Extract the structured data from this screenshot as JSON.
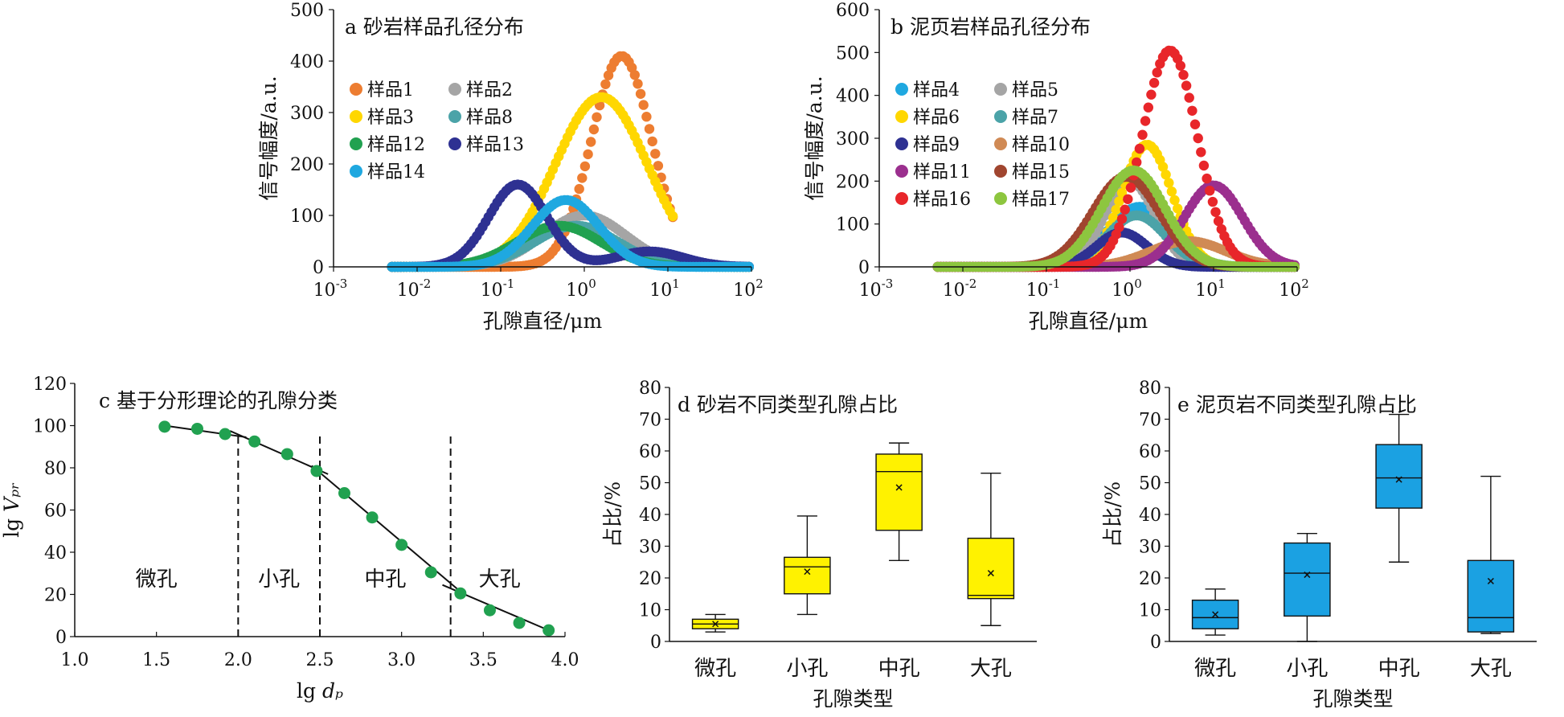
{
  "colors": {
    "样品1": "#ED7D31",
    "样品2": "#A5A5A5",
    "样品3": "#FFD700",
    "样品8": "#4BA3A8",
    "样品12": "#21A150",
    "样品13": "#2E3192",
    "样品14": "#1FA8E0",
    "样品4": "#1FA8E0",
    "样品5": "#A5A5A5",
    "样品6": "#FFD700",
    "样品7": "#4BA3A8",
    "样品9": "#2E3192",
    "样品10": "#D08A55",
    "样品11": "#9B2F8E",
    "样品15": "#A0452F",
    "样品16": "#E8262A",
    "样品17": "#8DC63F",
    "fractal_points": "#21A150",
    "sandstone_box": "#FFF200",
    "shale_box": "#1BA1E2"
  },
  "chart_data": [
    {
      "id": "a",
      "type": "scatter",
      "title": "a 砂岩样品孔径分布",
      "xlabel": "孔隙直径/μm",
      "ylabel": "信号幅度/a.u.",
      "xscale": "log",
      "xlim": [
        0.001,
        100
      ],
      "ylim": [
        0,
        500
      ],
      "xticks": [
        -3,
        -2,
        -1,
        0,
        1,
        2
      ],
      "yticks": [
        0,
        100,
        200,
        300,
        400,
        500
      ],
      "legend_position": "top-left",
      "series": [
        {
          "name": "样品1",
          "peak_x": 2.8,
          "peak_y": 410,
          "sigma_log": 0.36,
          "x_range": [
            0.005,
            12
          ]
        },
        {
          "name": "样品2",
          "peak_x": 1.0,
          "peak_y": 100,
          "sigma_log": 0.5,
          "x_range": [
            0.005,
            100
          ]
        },
        {
          "name": "样品3",
          "peak_x": 1.6,
          "peak_y": 330,
          "sigma_log": 0.55,
          "x_range": [
            0.005,
            12
          ]
        },
        {
          "name": "样品8",
          "peak_x": 0.8,
          "peak_y": 80,
          "sigma_log": 0.5,
          "x_range": [
            0.005,
            100
          ]
        },
        {
          "name": "样品12",
          "peak_x": 0.5,
          "peak_y": 80,
          "sigma_log": 0.5,
          "x_range": [
            0.005,
            100
          ]
        },
        {
          "name": "样品13",
          "peak_x": 0.16,
          "peak_y": 160,
          "sigma_log": 0.35,
          "x_range": [
            0.005,
            100
          ],
          "second_peak_x": 6,
          "second_peak_y": 30,
          "second_sigma_log": 0.4
        },
        {
          "name": "样品14",
          "peak_x": 0.6,
          "peak_y": 130,
          "sigma_log": 0.4,
          "x_range": [
            0.005,
            100
          ]
        }
      ]
    },
    {
      "id": "b",
      "type": "scatter",
      "title": "b 泥页岩样品孔径分布",
      "xlabel": "孔隙直径/μm",
      "ylabel": "信号幅度/a.u.",
      "xscale": "log",
      "xlim": [
        0.001,
        100
      ],
      "ylim": [
        0,
        600
      ],
      "xticks": [
        -3,
        -2,
        -1,
        0,
        1,
        2
      ],
      "yticks": [
        0,
        100,
        200,
        300,
        400,
        500,
        600
      ],
      "legend_position": "top-left",
      "series": [
        {
          "name": "样品4",
          "peak_x": 1.3,
          "peak_y": 140,
          "sigma_log": 0.38,
          "x_range": [
            0.005,
            100
          ]
        },
        {
          "name": "样品5",
          "peak_x": 1.0,
          "peak_y": 200,
          "sigma_log": 0.3,
          "x_range": [
            0.005,
            100
          ]
        },
        {
          "name": "样品6",
          "peak_x": 1.6,
          "peak_y": 285,
          "sigma_log": 0.3,
          "x_range": [
            0.005,
            100
          ]
        },
        {
          "name": "样品7",
          "peak_x": 1.2,
          "peak_y": 120,
          "sigma_log": 0.35,
          "x_range": [
            0.005,
            100
          ]
        },
        {
          "name": "样品9",
          "peak_x": 0.8,
          "peak_y": 80,
          "sigma_log": 0.3,
          "x_range": [
            0.005,
            100
          ]
        },
        {
          "name": "样品10",
          "peak_x": 5,
          "peak_y": 60,
          "sigma_log": 0.45,
          "x_range": [
            0.005,
            100
          ]
        },
        {
          "name": "样品11",
          "peak_x": 10,
          "peak_y": 190,
          "sigma_log": 0.35,
          "x_range": [
            0.005,
            100
          ]
        },
        {
          "name": "样品15",
          "peak_x": 0.9,
          "peak_y": 210,
          "sigma_log": 0.4,
          "x_range": [
            0.005,
            100
          ]
        },
        {
          "name": "样品16",
          "peak_x": 3,
          "peak_y": 505,
          "sigma_log": 0.33,
          "x_range": [
            0.005,
            100
          ]
        },
        {
          "name": "样品17",
          "peak_x": 1.1,
          "peak_y": 225,
          "sigma_log": 0.38,
          "x_range": [
            0.005,
            100
          ]
        }
      ]
    },
    {
      "id": "c",
      "type": "line",
      "title": "c 基于分形理论的孔隙分类",
      "xlabel": "lg dₚ",
      "ylabel": "lg Vₚᵣ",
      "xlim": [
        1.0,
        4.0
      ],
      "ylim": [
        0,
        120
      ],
      "xticks": [
        "1.0",
        "1.5",
        "2.0",
        "2.5",
        "3.0",
        "3.5",
        "4.0"
      ],
      "yticks": [
        0,
        20,
        40,
        60,
        80,
        100,
        120
      ],
      "points_x": [
        1.55,
        1.75,
        1.92,
        2.1,
        2.3,
        2.48,
        2.65,
        2.82,
        3.0,
        3.18,
        3.36,
        3.54,
        3.72,
        3.9
      ],
      "points_y": [
        99.5,
        98.5,
        96,
        92.5,
        86.5,
        78.5,
        68,
        56.5,
        43.5,
        30.5,
        20.5,
        12.5,
        6.5,
        3
      ],
      "boundaries": [
        2.0,
        2.5,
        3.3
      ],
      "fit_segments": [
        {
          "x": [
            1.55,
            2.05
          ],
          "y": [
            100,
            94.5
          ]
        },
        {
          "x": [
            1.95,
            2.55
          ],
          "y": [
            97.5,
            77
          ]
        },
        {
          "x": [
            2.45,
            3.35
          ],
          "y": [
            81,
            22
          ]
        },
        {
          "x": [
            3.25,
            3.9
          ],
          "y": [
            24.5,
            3
          ]
        }
      ],
      "region_labels": [
        {
          "label": "微孔",
          "x": 1.5,
          "y": 24
        },
        {
          "label": "小孔",
          "x": 2.25,
          "y": 24
        },
        {
          "label": "中孔",
          "x": 2.9,
          "y": 24
        },
        {
          "label": "大孔",
          "x": 3.6,
          "y": 24
        }
      ]
    },
    {
      "id": "d",
      "type": "box",
      "title": "d 砂岩不同类型孔隙占比",
      "xlabel": "孔隙类型",
      "ylabel": "占比/%",
      "ylim": [
        0,
        80
      ],
      "yticks": [
        0,
        10,
        20,
        30,
        40,
        50,
        60,
        70,
        80
      ],
      "categories": [
        "微孔",
        "小孔",
        "中孔",
        "大孔"
      ],
      "boxes": [
        {
          "min": 3,
          "q1": 4,
          "median": 5.5,
          "q3": 7,
          "max": 8.5,
          "mean": 5.5
        },
        {
          "min": 8.5,
          "q1": 15,
          "median": 23.5,
          "q3": 26.5,
          "max": 39.5,
          "mean": 22
        },
        {
          "min": 25.5,
          "q1": 35,
          "median": 53.5,
          "q3": 59,
          "max": 62.5,
          "mean": 48.5
        },
        {
          "min": 5,
          "q1": 13.5,
          "median": 14.5,
          "q3": 32.5,
          "max": 53,
          "mean": 21.5
        }
      ]
    },
    {
      "id": "e",
      "type": "box",
      "title": "e 泥页岩不同类型孔隙占比",
      "xlabel": "孔隙类型",
      "ylabel": "占比/%",
      "ylim": [
        0,
        80
      ],
      "yticks": [
        0,
        10,
        20,
        30,
        40,
        50,
        60,
        70,
        80
      ],
      "categories": [
        "微孔",
        "小孔",
        "中孔",
        "大孔"
      ],
      "boxes": [
        {
          "min": 2,
          "q1": 4,
          "median": 7.5,
          "q3": 13,
          "max": 16.5,
          "mean": 8.5
        },
        {
          "min": 0,
          "q1": 8,
          "median": 21.5,
          "q3": 31,
          "max": 34,
          "mean": 21
        },
        {
          "min": 25,
          "q1": 42,
          "median": 51.5,
          "q3": 62,
          "max": 71.5,
          "mean": 51
        },
        {
          "min": 2.5,
          "q1": 3,
          "median": 7.5,
          "q3": 25.5,
          "max": 52,
          "mean": 19
        }
      ]
    }
  ]
}
